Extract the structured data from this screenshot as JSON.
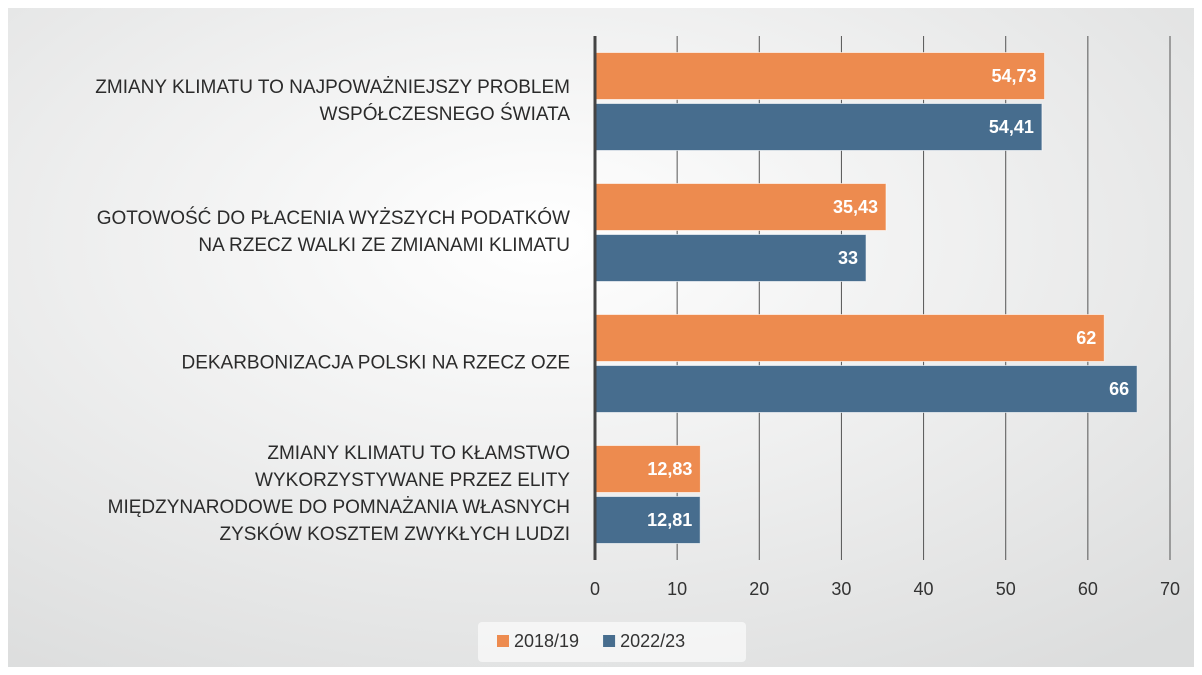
{
  "chart_data": {
    "type": "bar",
    "orientation": "horizontal",
    "categories": [
      [
        "ZMIANY KLIMATU TO NAJPOWAŻNIEJSZY PROBLEM",
        "WSPÓŁCZESNEGO ŚWIATA"
      ],
      [
        "GOTOWOŚĆ DO PŁACENIA WYŻSZYCH PODATKÓW",
        "NA RZECZ WALKI ZE ZMIANAMI KLIMATU"
      ],
      [
        "DEKARBONIZACJA POLSKI NA RZECZ OZE"
      ],
      [
        "ZMIANY KLIMATU TO KŁAMSTWO",
        "WYKORZYSTYWANE PRZEZ ELITY",
        "MIĘDZYNARODOWE DO POMNAŻANIA WŁASNYCH",
        "ZYSKÓW KOSZTEM ZWYKŁYCH LUDZI"
      ]
    ],
    "series": [
      {
        "name": "2018/19",
        "color": "#ed8b4f",
        "values": [
          54.73,
          35.43,
          62,
          12.83
        ],
        "value_labels": [
          "54,73",
          "35,43",
          "62",
          "12,83"
        ]
      },
      {
        "name": "2022/23",
        "color": "#476d8e",
        "values": [
          54.41,
          33,
          66,
          12.81
        ],
        "value_labels": [
          "54,41",
          "33",
          "66",
          "12,81"
        ]
      }
    ],
    "xlim": [
      0,
      70
    ],
    "xticks": [
      0,
      10,
      20,
      30,
      40,
      50,
      60,
      70
    ],
    "grid": true,
    "legend": "bottom"
  }
}
